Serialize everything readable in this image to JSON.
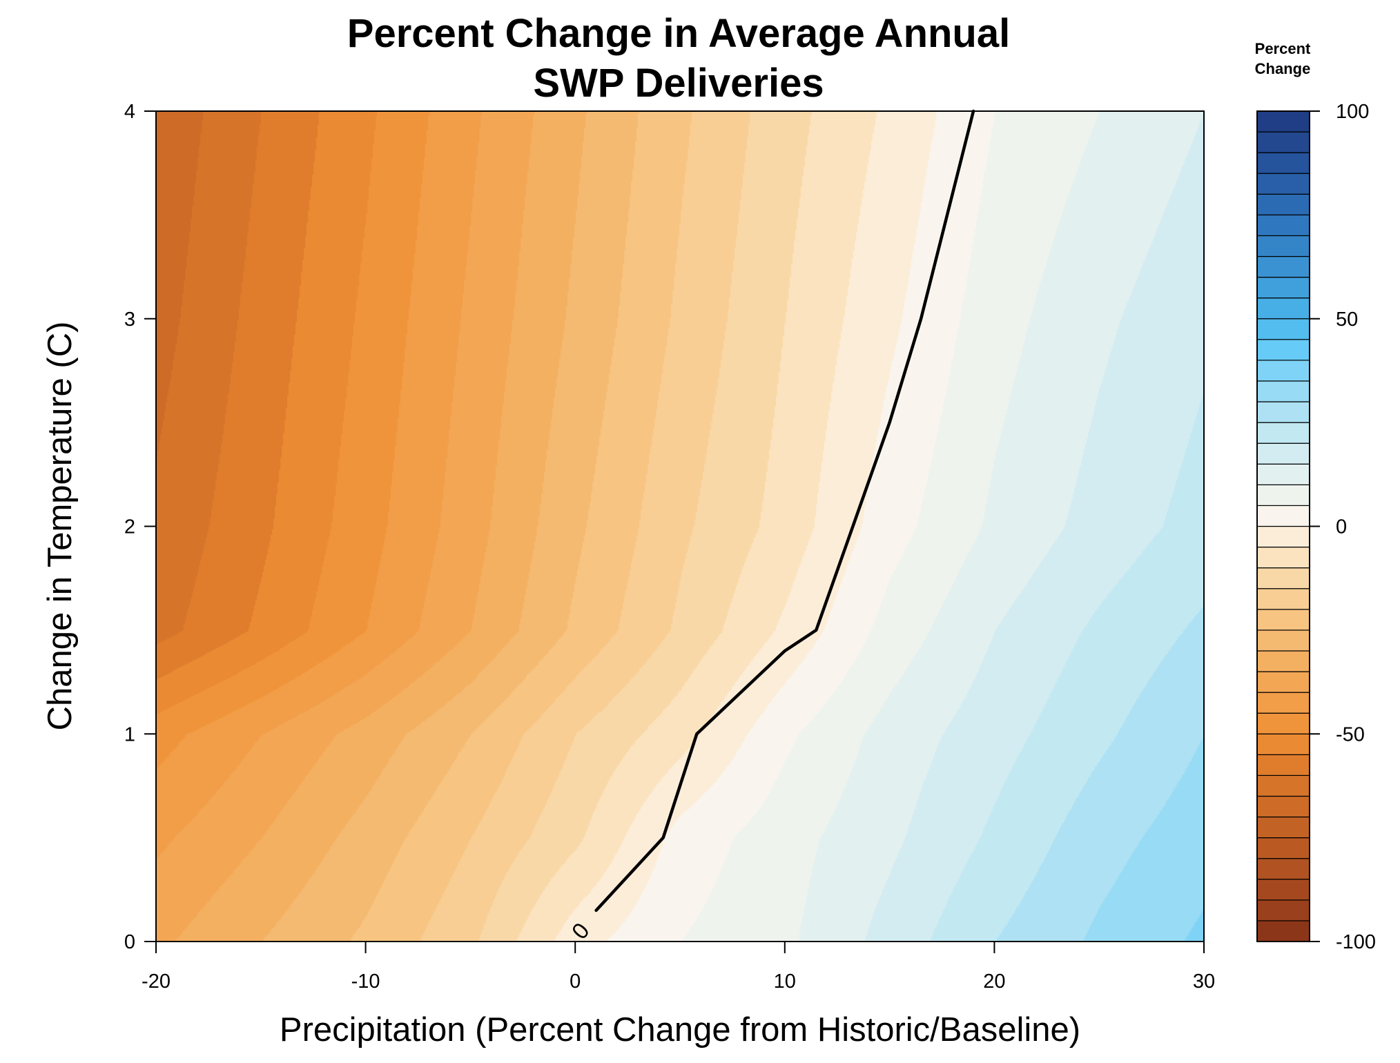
{
  "chart_data": {
    "type": "heatmap",
    "subtype": "filled-contour",
    "title_lines": [
      "Percent Change in Average Annual",
      "SWP Deliveries"
    ],
    "xlabel": "Precipitation (Percent Change from Historic/Baseline)",
    "ylabel": "Change in Temperature (C)",
    "xlim": [
      -20,
      30
    ],
    "ylim": [
      0,
      4
    ],
    "xticks": [
      -20,
      -10,
      0,
      10,
      20,
      30
    ],
    "yticks": [
      0,
      1,
      2,
      3,
      4
    ],
    "colorbar": {
      "title_lines": [
        "Percent",
        "Change"
      ],
      "range": [
        -100,
        100
      ],
      "ticks": [
        100,
        50,
        0,
        -50,
        -100
      ],
      "levels": [
        -100,
        -95,
        -90,
        -85,
        -80,
        -75,
        -70,
        -65,
        -60,
        -55,
        -50,
        -45,
        -40,
        -35,
        -30,
        -25,
        -20,
        -15,
        -10,
        -5,
        0,
        5,
        10,
        15,
        20,
        25,
        30,
        35,
        40,
        45,
        50,
        55,
        60,
        65,
        70,
        75,
        80,
        85,
        90,
        95,
        100
      ],
      "colors": [
        "#8c3619",
        "#9a401c",
        "#a6481f",
        "#b05221",
        "#ba5a22",
        "#c36225",
        "#cd6b27",
        "#d6742a",
        "#e07d2d",
        "#ea8a33",
        "#f0943c",
        "#f29d48",
        "#f3a654",
        "#f4b061",
        "#f5ba71",
        "#f7c482",
        "#f8ce94",
        "#f9d8a8",
        "#fbe3bf",
        "#fcedd9",
        "#f9f5ee",
        "#eef3ee",
        "#e2f0f0",
        "#d3ecf1",
        "#c2e8f2",
        "#ade1f3",
        "#97dbf5",
        "#7fd3f7",
        "#66cbf6",
        "#53bdf0",
        "#47aee6",
        "#40a0dc",
        "#3a92d2",
        "#3484c8",
        "#2f77be",
        "#2b6bb4",
        "#285fa8",
        "#25539c",
        "#234890",
        "#203e85"
      ]
    },
    "grid": {
      "x": [
        -20,
        -15,
        -10,
        -5,
        0,
        5,
        10,
        15,
        20,
        25,
        30
      ],
      "y": [
        0,
        0.5,
        1,
        1.5,
        2,
        3,
        4
      ],
      "z": [
        [
          -36,
          -30,
          -24,
          -16,
          -2,
          5,
          9,
          17,
          25,
          31,
          36
        ],
        [
          -41,
          -35,
          -28,
          -20,
          -11,
          2,
          8,
          14,
          21,
          28,
          33
        ],
        [
          -47,
          -40,
          -33,
          -25,
          -15,
          -7,
          4,
          12,
          18,
          24,
          30
        ],
        [
          -62,
          -54,
          -45,
          -35,
          -24,
          -14,
          -4,
          7,
          15,
          21,
          26
        ],
        [
          -64,
          -56,
          -47,
          -37,
          -26,
          -16,
          -8,
          3,
          11,
          17,
          22
        ],
        [
          -67,
          -58,
          -49,
          -39,
          -29,
          -19,
          -10,
          -1,
          8,
          14,
          19
        ],
        [
          -69,
          -60,
          -51,
          -41,
          -31,
          -21,
          -12,
          -4,
          5,
          10,
          15
        ]
      ]
    },
    "zero_contour": {
      "label": "0",
      "x": [
        1,
        4.2,
        5.8,
        10,
        11.5,
        15,
        16.5,
        19
      ],
      "y": [
        0.15,
        0.5,
        1,
        1.4,
        1.5,
        2.5,
        3,
        4
      ]
    }
  }
}
